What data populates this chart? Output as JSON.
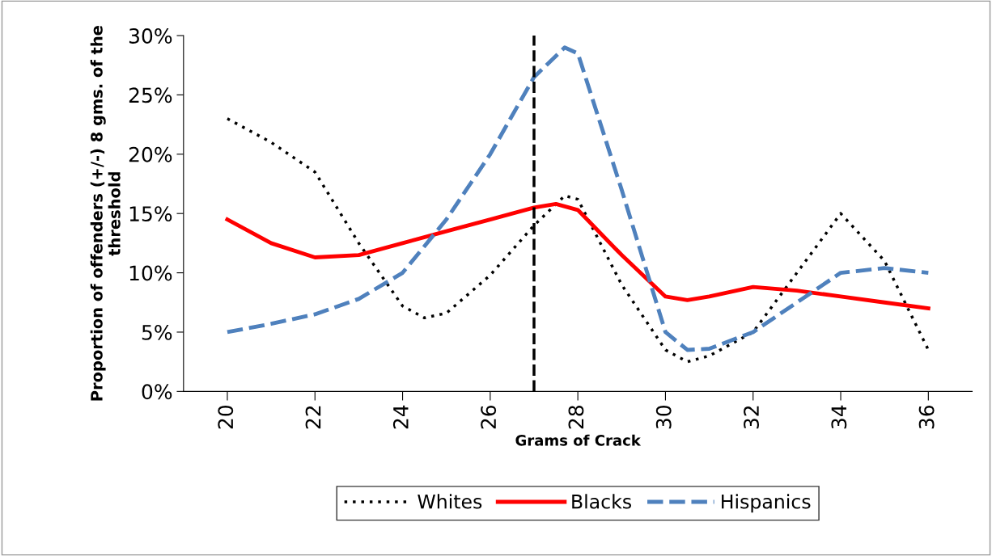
{
  "chart_data": {
    "type": "line",
    "xlabel": "Grams of Crack",
    "ylabel": "Proportion of offenders (+/-) 8 gms. of the threshold",
    "xlim": [
      19,
      37
    ],
    "xticks": [
      20,
      22,
      24,
      26,
      28,
      30,
      32,
      34,
      36
    ],
    "ylim": [
      0,
      30
    ],
    "yticks": [
      {
        "value": 0,
        "label": "0%"
      },
      {
        "value": 5,
        "label": "5%"
      },
      {
        "value": 10,
        "label": "10%"
      },
      {
        "value": 15,
        "label": "15%"
      },
      {
        "value": 20,
        "label": "20%"
      },
      {
        "value": 25,
        "label": "25%"
      },
      {
        "value": 30,
        "label": "30%"
      }
    ],
    "grid": false,
    "legend": "bottom",
    "marker": "none",
    "ref_lines": [
      {
        "axis": "x",
        "value": 27,
        "color": "#000000",
        "line_style": "dashed"
      }
    ],
    "series": [
      {
        "name": "Whites",
        "color": "#000000",
        "line_style": "dotted",
        "x": [
          20,
          21,
          22,
          23,
          24,
          24.5,
          25,
          26,
          27,
          27.7,
          28,
          29,
          30,
          30.5,
          31,
          32,
          33,
          34,
          35,
          36
        ],
        "values": [
          23,
          21,
          18.5,
          12.5,
          7.2,
          6.2,
          6.6,
          9.8,
          14,
          16.5,
          16.2,
          9,
          3.5,
          2.5,
          3,
          5,
          10,
          15,
          11,
          3.5
        ]
      },
      {
        "name": "Blacks",
        "color": "#ff0000",
        "line_style": "solid",
        "x": [
          20,
          21,
          22,
          23,
          24,
          25,
          26,
          27,
          27.5,
          28,
          29,
          30,
          30.5,
          31,
          32,
          33,
          34,
          35,
          36
        ],
        "values": [
          14.5,
          12.5,
          11.3,
          11.5,
          12.5,
          13.5,
          14.5,
          15.5,
          15.8,
          15.3,
          11.5,
          8,
          7.7,
          8,
          8.8,
          8.5,
          8,
          7.5,
          7
        ]
      },
      {
        "name": "Hispanics",
        "color": "#4f81bd",
        "line_style": "dashed",
        "x": [
          20,
          21,
          22,
          23,
          24,
          25,
          26,
          27,
          27.7,
          28,
          29,
          30,
          30.5,
          31,
          32,
          33,
          34,
          35,
          36
        ],
        "values": [
          5,
          5.7,
          6.5,
          7.8,
          10,
          14.5,
          20,
          26.5,
          29,
          28.5,
          17,
          5,
          3.5,
          3.6,
          5,
          7.5,
          10,
          10.4,
          10
        ]
      }
    ]
  }
}
